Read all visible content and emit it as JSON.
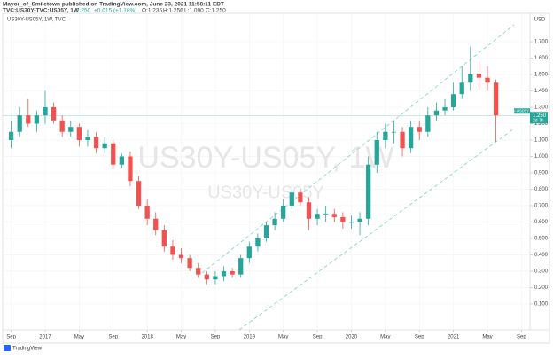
{
  "header": {
    "publisher": "Mayor_of_Smiletown published on TradingView.com, June 23, 2021 11:58:11 EDT",
    "symbol": "TVC:US30Y-TVC:US05Y, 1W",
    "last": "1.250",
    "change": "+0.015 (+1.18%)",
    "o": "O:1.235",
    "h": "H:1.256",
    "l": "L:1.090",
    "c": "C:1.250"
  },
  "footer": {
    "logo": "TradingView"
  },
  "chart_data": {
    "type": "candlestick",
    "title": "US30Y-US05Y, 1W, TVC",
    "watermark": "US30Y-US05Y, 1W",
    "watermark_sub": "US30Y-US05Y",
    "currency": "USD",
    "up_color": "#26a69a",
    "down_color": "#ef5350",
    "x": [
      "2016-09",
      "2016-10",
      "2016-11",
      "2016-12",
      "2017-01",
      "2017-02",
      "2017-03",
      "2017-04",
      "2017-05",
      "2017-06",
      "2017-07",
      "2017-08",
      "2017-09",
      "2017-10",
      "2017-11",
      "2017-12",
      "2018-01",
      "2018-02",
      "2018-03",
      "2018-04",
      "2018-05",
      "2018-06",
      "2018-07",
      "2018-08",
      "2018-09",
      "2018-10",
      "2018-11",
      "2018-12",
      "2019-01",
      "2019-02",
      "2019-03",
      "2019-04",
      "2019-05",
      "2019-06",
      "2019-07",
      "2019-08",
      "2019-09",
      "2019-10",
      "2019-11",
      "2019-12",
      "2020-01",
      "2020-02",
      "2020-03",
      "2020-04",
      "2020-05",
      "2020-06",
      "2020-07",
      "2020-08",
      "2020-09",
      "2020-10",
      "2020-11",
      "2020-12",
      "2021-01",
      "2021-02",
      "2021-03",
      "2021-04",
      "2021-05",
      "2021-06"
    ],
    "open": [
      1.1,
      1.15,
      1.25,
      1.2,
      1.25,
      1.3,
      1.22,
      1.15,
      1.18,
      1.1,
      1.12,
      1.05,
      1.08,
      0.95,
      1.0,
      0.85,
      0.7,
      0.62,
      0.55,
      0.45,
      0.4,
      0.38,
      0.32,
      0.28,
      0.25,
      0.27,
      0.3,
      0.28,
      0.38,
      0.45,
      0.5,
      0.58,
      0.62,
      0.7,
      0.78,
      0.72,
      0.62,
      0.65,
      0.65,
      0.63,
      0.6,
      0.6,
      0.62,
      0.95,
      1.1,
      1.15,
      1.15,
      1.05,
      1.18,
      1.15,
      1.25,
      1.28,
      1.3,
      1.38,
      1.45,
      1.5,
      1.48,
      1.45
    ],
    "high": [
      1.22,
      1.3,
      1.35,
      1.28,
      1.4,
      1.33,
      1.25,
      1.22,
      1.2,
      1.16,
      1.15,
      1.12,
      1.1,
      1.02,
      1.03,
      0.88,
      0.74,
      0.66,
      0.58,
      0.49,
      0.44,
      0.4,
      0.35,
      0.3,
      0.3,
      0.33,
      0.32,
      0.4,
      0.48,
      0.53,
      0.6,
      0.66,
      0.74,
      0.8,
      0.8,
      0.75,
      0.68,
      0.7,
      0.68,
      0.66,
      0.64,
      0.66,
      1.0,
      1.15,
      1.2,
      1.22,
      1.18,
      1.22,
      1.22,
      1.3,
      1.33,
      1.35,
      1.45,
      1.55,
      1.67,
      1.58,
      1.55,
      1.47
    ],
    "low": [
      1.05,
      1.12,
      1.18,
      1.15,
      1.2,
      1.2,
      1.12,
      1.12,
      1.06,
      1.06,
      1.02,
      1.02,
      0.92,
      0.93,
      0.82,
      0.68,
      0.58,
      0.52,
      0.42,
      0.37,
      0.35,
      0.3,
      0.26,
      0.22,
      0.22,
      0.24,
      0.26,
      0.26,
      0.35,
      0.42,
      0.48,
      0.55,
      0.6,
      0.68,
      0.7,
      0.55,
      0.58,
      0.6,
      0.6,
      0.56,
      0.56,
      0.52,
      0.58,
      0.9,
      1.05,
      1.08,
      1.0,
      1.02,
      1.1,
      1.12,
      1.22,
      1.25,
      1.28,
      1.35,
      1.4,
      1.4,
      1.4,
      1.09
    ],
    "close": [
      1.15,
      1.25,
      1.2,
      1.25,
      1.3,
      1.22,
      1.15,
      1.18,
      1.1,
      1.12,
      1.05,
      1.08,
      0.95,
      1.0,
      0.85,
      0.7,
      0.62,
      0.55,
      0.45,
      0.4,
      0.38,
      0.32,
      0.28,
      0.25,
      0.27,
      0.3,
      0.28,
      0.38,
      0.45,
      0.5,
      0.58,
      0.62,
      0.7,
      0.78,
      0.72,
      0.62,
      0.65,
      0.65,
      0.63,
      0.6,
      0.6,
      0.62,
      0.95,
      1.1,
      1.15,
      1.15,
      1.05,
      1.18,
      1.15,
      1.25,
      1.28,
      1.3,
      1.38,
      1.45,
      1.5,
      1.48,
      1.45,
      1.25
    ],
    "xlim": [
      "2016-08",
      "2021-10"
    ],
    "xticks": [
      {
        "value": "2016-09",
        "label": "Sep"
      },
      {
        "value": "2017-01",
        "label": "2017"
      },
      {
        "value": "2017-05",
        "label": "May"
      },
      {
        "value": "2017-09",
        "label": "Sep"
      },
      {
        "value": "2018-01",
        "label": "2018"
      },
      {
        "value": "2018-05",
        "label": "May"
      },
      {
        "value": "2018-09",
        "label": "Sep"
      },
      {
        "value": "2019-01",
        "label": "2019"
      },
      {
        "value": "2019-05",
        "label": "May"
      },
      {
        "value": "2019-09",
        "label": "Sep"
      },
      {
        "value": "2020-01",
        "label": "2020"
      },
      {
        "value": "2020-05",
        "label": "May"
      },
      {
        "value": "2020-09",
        "label": "Sep"
      },
      {
        "value": "2021-01",
        "label": "2021"
      },
      {
        "value": "2021-05",
        "label": "May"
      },
      {
        "value": "2021-09",
        "label": "Sep"
      }
    ],
    "ylim": [
      -0.057,
      1.873
    ],
    "yticks": [
      {
        "value": 0.1,
        "label": "0.100"
      },
      {
        "value": 0.2,
        "label": "0.200"
      },
      {
        "value": 0.3,
        "label": "0.300"
      },
      {
        "value": 0.4,
        "label": "0.400"
      },
      {
        "value": 0.5,
        "label": "0.500"
      },
      {
        "value": 0.6,
        "label": "0.600"
      },
      {
        "value": 0.7,
        "label": "0.700"
      },
      {
        "value": 0.8,
        "label": "0.800"
      },
      {
        "value": 0.9,
        "label": "0.900"
      },
      {
        "value": 1.0,
        "label": "1.000"
      },
      {
        "value": 1.1,
        "label": "1.100"
      },
      {
        "value": 1.2,
        "label": "1.200"
      },
      {
        "value": 1.3,
        "label": "1.300"
      },
      {
        "value": 1.4,
        "label": "1.400"
      },
      {
        "value": 1.5,
        "label": "1.500"
      },
      {
        "value": 1.6,
        "label": "1.600"
      },
      {
        "value": 1.7,
        "label": "1.700"
      }
    ],
    "grid": true,
    "price_tag": {
      "name": "US30Y-US05Y",
      "value": 1.25,
      "label": "1.250",
      "countdown": "2d 7h"
    }
  }
}
